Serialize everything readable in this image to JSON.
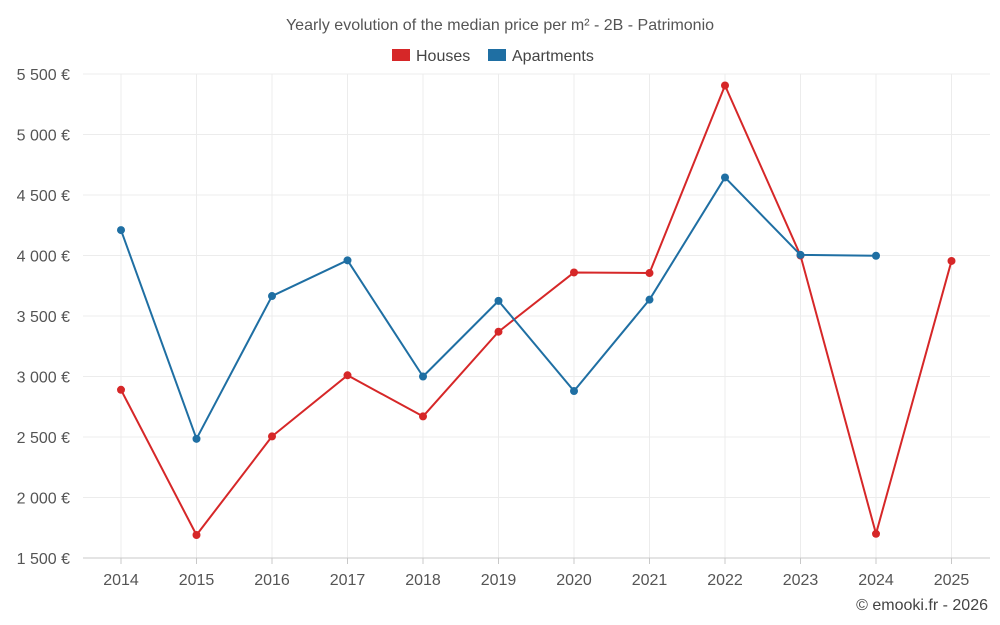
{
  "chart_data": {
    "type": "line",
    "title": "Yearly evolution of the median price per m² - 2B - Patrimonio",
    "xlabel": "",
    "ylabel": "",
    "categories": [
      "2014",
      "2015",
      "2016",
      "2017",
      "2018",
      "2019",
      "2020",
      "2021",
      "2022",
      "2023",
      "2024",
      "2025"
    ],
    "ylim": [
      1500,
      5500
    ],
    "yticks": [
      1500,
      2000,
      2500,
      3000,
      3500,
      4000,
      4500,
      5000,
      5500
    ],
    "ytick_labels": [
      "1 500 €",
      "2 000 €",
      "2 500 €",
      "3 000 €",
      "3 500 €",
      "4 000 €",
      "4 500 €",
      "5 000 €",
      "5 500 €"
    ],
    "legend_position": "top-center",
    "grid": true,
    "series": [
      {
        "name": "Houses",
        "color": "#d62728",
        "values": [
          2890,
          1690,
          2505,
          3010,
          2670,
          3370,
          3860,
          3855,
          5405,
          4000,
          1700,
          3955
        ]
      },
      {
        "name": "Apartments",
        "color": "#1f6fa3",
        "values": [
          4210,
          2485,
          3665,
          3960,
          3000,
          3625,
          2880,
          3635,
          4645,
          4005,
          3998,
          null
        ]
      }
    ]
  },
  "credit": "© emooki.fr - 2026"
}
